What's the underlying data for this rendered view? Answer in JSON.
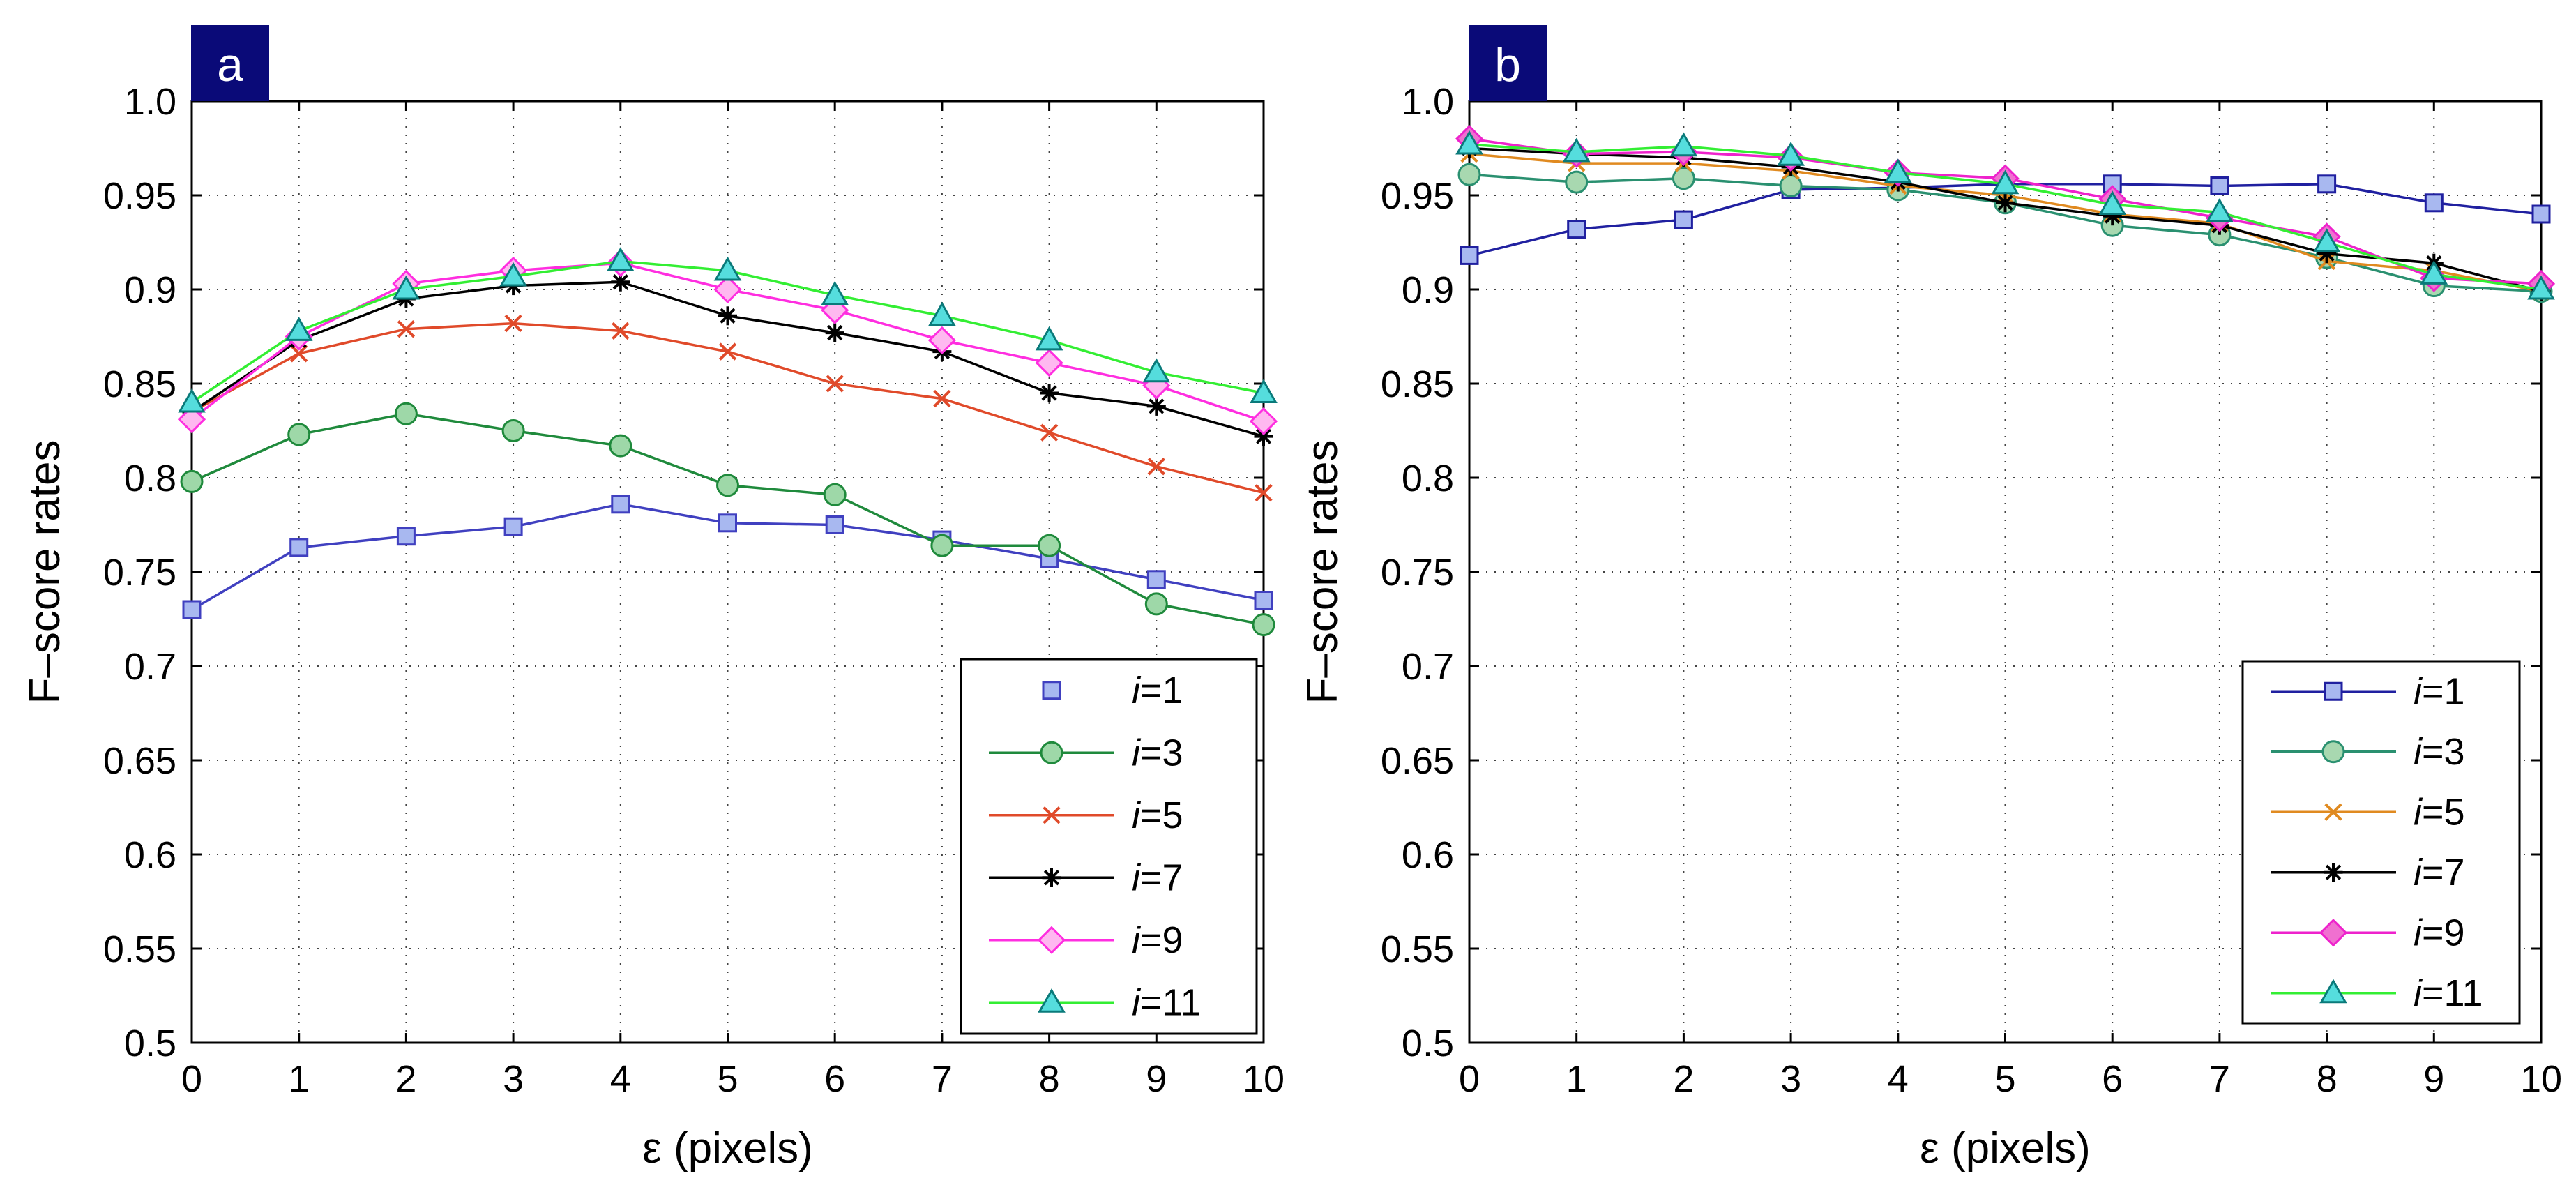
{
  "chart_data": [
    {
      "type": "line",
      "panel_label": "a",
      "title": "",
      "xlabel": "ε (pixels)",
      "ylabel": "F–score rates",
      "xlim": [
        0,
        10
      ],
      "ylim": [
        0.5,
        1.0
      ],
      "grid": true,
      "legend_position": "bottom-right",
      "x": [
        0,
        1,
        2,
        3,
        4,
        5,
        6,
        7,
        8,
        9,
        10
      ],
      "x_tick_labels": [
        "0",
        "1",
        "2",
        "3",
        "4",
        "5",
        "6",
        "7",
        "8",
        "9",
        "10"
      ],
      "y_ticks": [
        0.5,
        0.55,
        0.6,
        0.65,
        0.7,
        0.75,
        0.8,
        0.85,
        0.9,
        0.95,
        1.0
      ],
      "y_tick_labels": [
        "0.5",
        "0.55",
        "0.6",
        "0.65",
        "0.7",
        "0.75",
        "0.8",
        "0.85",
        "0.9",
        "0.95",
        "1.0"
      ],
      "series": [
        {
          "name": "i=1",
          "label_var": "i",
          "label_val": "=1",
          "marker": "square",
          "color": "#4040c0",
          "fill": "#a8b8f0",
          "values": [
            0.73,
            0.763,
            0.769,
            0.774,
            0.786,
            0.776,
            0.775,
            0.767,
            0.757,
            0.746,
            0.735
          ]
        },
        {
          "name": "i=3",
          "label_var": "i",
          "label_val": "=3",
          "marker": "circle",
          "color": "#1f8a3c",
          "fill": "#9ed8a8",
          "values": [
            0.798,
            0.823,
            0.834,
            0.825,
            0.817,
            0.796,
            0.791,
            0.764,
            0.764,
            0.733,
            0.722
          ]
        },
        {
          "name": "i=5",
          "label_var": "i",
          "label_val": "=5",
          "marker": "x",
          "color": "#e04a2a",
          "fill": "none",
          "values": [
            0.835,
            0.866,
            0.879,
            0.882,
            0.878,
            0.867,
            0.85,
            0.842,
            0.824,
            0.806,
            0.792
          ]
        },
        {
          "name": "i=7",
          "label_var": "i",
          "label_val": "=7",
          "marker": "star",
          "color": "#000000",
          "fill": "none",
          "values": [
            0.835,
            0.873,
            0.895,
            0.902,
            0.904,
            0.886,
            0.877,
            0.867,
            0.845,
            0.838,
            0.822
          ]
        },
        {
          "name": "i=9",
          "label_var": "i",
          "label_val": "=9",
          "marker": "diamond",
          "color": "#ff2ee0",
          "fill": "#ffb8f0",
          "values": [
            0.831,
            0.875,
            0.903,
            0.91,
            0.914,
            0.9,
            0.889,
            0.873,
            0.861,
            0.849,
            0.83
          ]
        },
        {
          "name": "i=11",
          "label_var": "i",
          "label_val": "=11",
          "marker": "triangle",
          "color": "#33ee33",
          "fill": "#55dddd",
          "values": [
            0.84,
            0.878,
            0.9,
            0.907,
            0.915,
            0.91,
            0.897,
            0.886,
            0.873,
            0.856,
            0.845
          ]
        }
      ]
    },
    {
      "type": "line",
      "panel_label": "b",
      "title": "",
      "xlabel": "ε (pixels)",
      "ylabel": "F–score rates",
      "xlim": [
        0,
        10
      ],
      "ylim": [
        0.5,
        1.0
      ],
      "grid": true,
      "legend_position": "bottom-right",
      "x": [
        0,
        1,
        2,
        3,
        4,
        5,
        6,
        7,
        8,
        9,
        10
      ],
      "x_tick_labels": [
        "0",
        "1",
        "2",
        "3",
        "4",
        "5",
        "6",
        "7",
        "8",
        "9",
        "10"
      ],
      "y_ticks": [
        0.5,
        0.55,
        0.6,
        0.65,
        0.7,
        0.75,
        0.8,
        0.85,
        0.9,
        0.95,
        1.0
      ],
      "y_tick_labels": [
        "0.5",
        "0.55",
        "0.6",
        "0.65",
        "0.7",
        "0.75",
        "0.8",
        "0.85",
        "0.9",
        "0.95",
        "1.0"
      ],
      "series": [
        {
          "name": "i=1",
          "label_var": "i",
          "label_val": "=1",
          "marker": "square",
          "color": "#2020a0",
          "fill": "#a8b8f0",
          "values": [
            0.918,
            0.932,
            0.937,
            0.953,
            0.954,
            0.956,
            0.956,
            0.955,
            0.956,
            0.946,
            0.94
          ]
        },
        {
          "name": "i=3",
          "label_var": "i",
          "label_val": "=3",
          "marker": "circle",
          "color": "#2a9070",
          "fill": "#a8d8b0",
          "values": [
            0.961,
            0.957,
            0.959,
            0.955,
            0.953,
            0.946,
            0.934,
            0.929,
            0.917,
            0.902,
            0.899
          ]
        },
        {
          "name": "i=5",
          "label_var": "i",
          "label_val": "=5",
          "marker": "x",
          "color": "#e08a20",
          "fill": "none",
          "values": [
            0.972,
            0.967,
            0.967,
            0.963,
            0.955,
            0.95,
            0.94,
            0.935,
            0.915,
            0.91,
            0.899
          ]
        },
        {
          "name": "i=7",
          "label_var": "i",
          "label_val": "=7",
          "marker": "star",
          "color": "#000000",
          "fill": "none",
          "values": [
            0.975,
            0.972,
            0.97,
            0.965,
            0.957,
            0.946,
            0.939,
            0.934,
            0.919,
            0.914,
            0.899
          ]
        },
        {
          "name": "i=9",
          "label_var": "i",
          "label_val": "=9",
          "marker": "diamond",
          "color": "#ee22cc",
          "fill": "#f070d0",
          "values": [
            0.98,
            0.972,
            0.973,
            0.97,
            0.962,
            0.959,
            0.948,
            0.938,
            0.928,
            0.906,
            0.903
          ]
        },
        {
          "name": "i=11",
          "label_var": "i",
          "label_val": "=11",
          "marker": "triangle",
          "color": "#33ee33",
          "fill": "#55dddd",
          "values": [
            0.977,
            0.973,
            0.976,
            0.971,
            0.962,
            0.956,
            0.945,
            0.941,
            0.925,
            0.908,
            0.9
          ]
        }
      ]
    }
  ]
}
